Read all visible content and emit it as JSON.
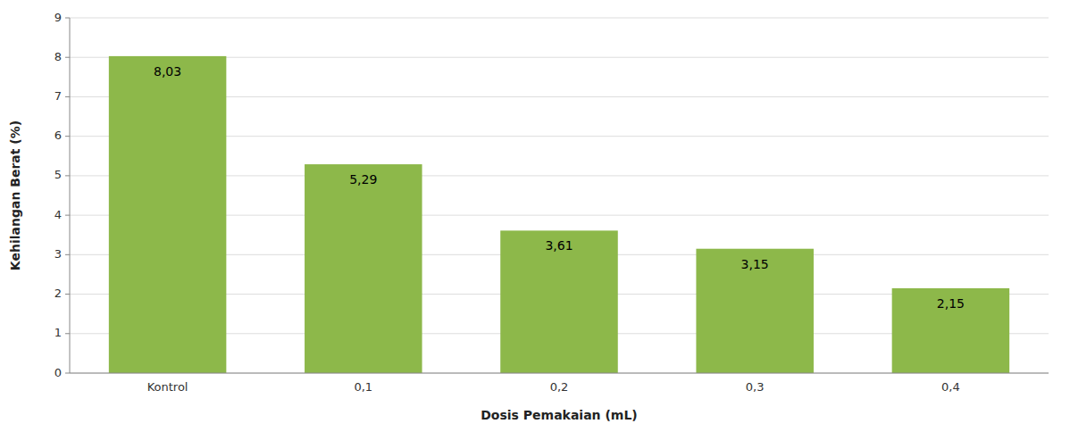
{
  "chart_data": {
    "type": "bar",
    "xlabel": "Dosis Pemakaian (mL)",
    "ylabel": "Kehilangan Berat  (%)",
    "categories": [
      "Kontrol",
      "0,1",
      "0,2",
      "0,3",
      "0,4"
    ],
    "values": [
      8.03,
      5.29,
      3.61,
      3.15,
      2.15
    ],
    "value_labels": [
      "8,03",
      "5,29",
      "3,61",
      "3,15",
      "2,15"
    ],
    "data_labels": true,
    "color": "#8DB84A",
    "ylim": [
      0,
      9
    ],
    "yticks": [
      0,
      1,
      2,
      3,
      4,
      5,
      6,
      7,
      8,
      9
    ],
    "grid": true
  }
}
